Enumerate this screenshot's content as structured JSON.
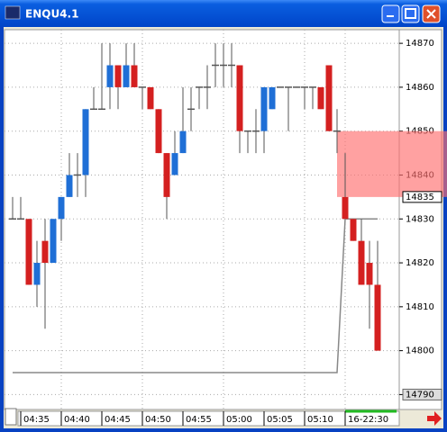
{
  "window": {
    "title": "ENQU4.1"
  },
  "chart_data": {
    "type": "candlestick",
    "categories": [
      null,
      "04:35",
      null,
      null,
      null,
      null,
      "04:40",
      null,
      null,
      null,
      null,
      "04:45",
      null,
      null,
      null,
      null,
      "04:50",
      null,
      null,
      null,
      null,
      "04:55",
      null,
      null,
      null,
      null,
      "05:00",
      null,
      null,
      null,
      null,
      "05:05",
      null,
      null,
      null,
      null,
      "05:10",
      null,
      null,
      null,
      null,
      "16-22:30",
      null,
      null,
      null,
      null
    ],
    "open": [
      14830,
      14830,
      14830,
      14815,
      14825,
      14820,
      14830,
      14835,
      14840,
      14840,
      14855,
      14855,
      14860,
      14865,
      14860,
      14865,
      14860,
      14860,
      14855,
      14845,
      14840,
      14845,
      14855,
      14860,
      14860,
      14865,
      14865,
      14865,
      14865,
      14850,
      14850,
      14850,
      14855,
      14860,
      14860,
      14860,
      14860,
      14860,
      14860,
      14865,
      14850,
      14835,
      14830,
      14825,
      14820,
      14815
    ],
    "high": [
      14835,
      14835,
      14830,
      14825,
      14830,
      14830,
      14835,
      14845,
      14845,
      14855,
      14860,
      14870,
      14870,
      14865,
      14870,
      14870,
      14860,
      14860,
      14855,
      14845,
      14850,
      14860,
      14860,
      14860,
      14865,
      14870,
      14870,
      14870,
      14865,
      14850,
      14855,
      14860,
      14860,
      14860,
      14860,
      14860,
      14860,
      14860,
      14860,
      14865,
      14855,
      14845,
      14830,
      14830,
      14825,
      14825
    ],
    "low": [
      14830,
      14830,
      14815,
      14810,
      14805,
      14820,
      14825,
      14835,
      14835,
      14835,
      14855,
      14855,
      14855,
      14855,
      14860,
      14860,
      14855,
      14855,
      14845,
      14830,
      14840,
      14845,
      14850,
      14855,
      14855,
      14860,
      14860,
      14860,
      14845,
      14845,
      14845,
      14845,
      14855,
      14860,
      14850,
      14860,
      14855,
      14855,
      14855,
      14850,
      14845,
      14830,
      14825,
      14815,
      14805,
      14800
    ],
    "close": [
      14830,
      14830,
      14815,
      14820,
      14820,
      14830,
      14835,
      14840,
      14840,
      14855,
      14855,
      14855,
      14865,
      14860,
      14865,
      14860,
      14860,
      14855,
      14845,
      14835,
      14845,
      14850,
      14855,
      14860,
      14860,
      14865,
      14865,
      14865,
      14850,
      14850,
      14850,
      14860,
      14860,
      14860,
      14860,
      14860,
      14860,
      14860,
      14855,
      14850,
      14850,
      14830,
      14825,
      14815,
      14815,
      14800
    ],
    "line_values": [
      14795,
      14795,
      14795,
      14795,
      14795,
      14795,
      14795,
      14795,
      14795,
      14795,
      14795,
      14795,
      14795,
      14795,
      14795,
      14795,
      14795,
      14795,
      14795,
      14795,
      14795,
      14795,
      14795,
      14795,
      14795,
      14795,
      14795,
      14795,
      14795,
      14795,
      14795,
      14795,
      14795,
      14795,
      14795,
      14795,
      14795,
      14795,
      14795,
      14795,
      14795,
      14830,
      14830,
      14830,
      14830,
      14830
    ],
    "up_color": "#1f6fd6",
    "down_color": "#d42020",
    "flat_color": "#555555",
    "line_color": "#888888",
    "ylim": [
      14786.6,
      14873.1
    ],
    "yticks": [
      14870,
      14860,
      14850,
      14840,
      14830,
      14820,
      14810,
      14800,
      14790
    ],
    "price_marker": 14835,
    "zone": [
      14835,
      14850
    ],
    "grid": true
  }
}
